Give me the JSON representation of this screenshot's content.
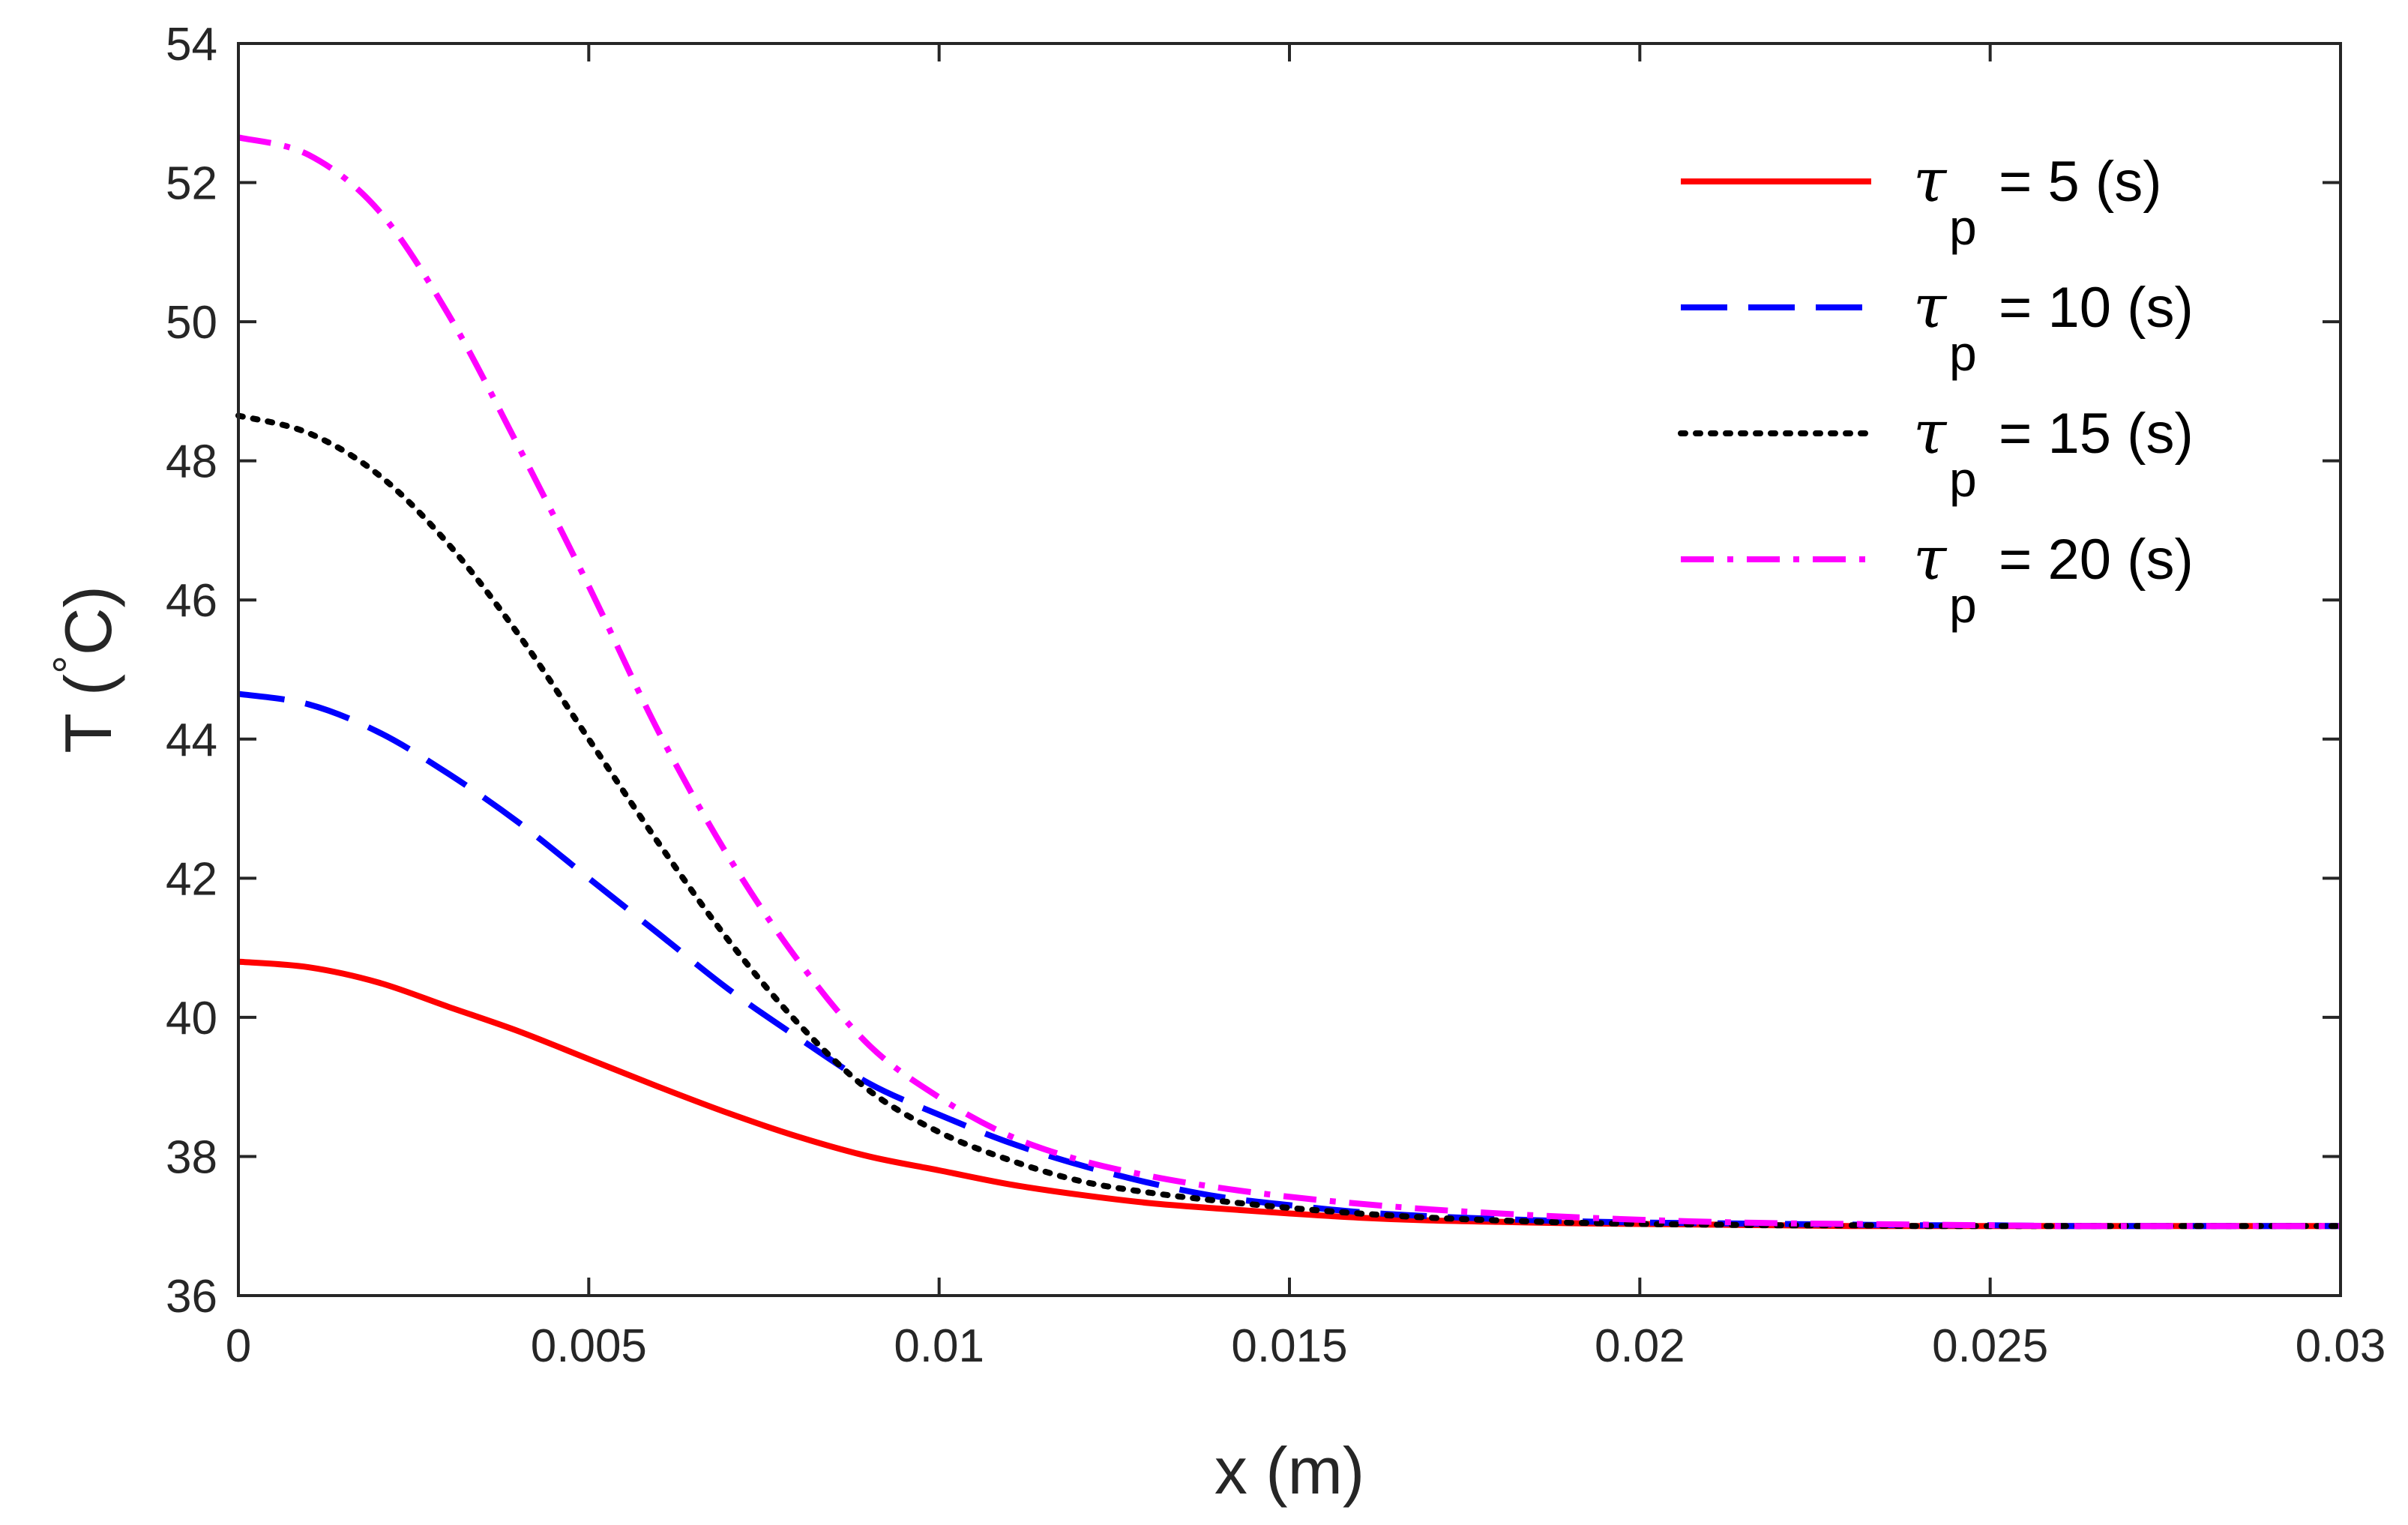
{
  "chart_data": {
    "type": "line",
    "title": "",
    "xlabel": "x (m)",
    "ylabel_prefix": "T (",
    "ylabel_degree": "°",
    "ylabel_suffix": "C)",
    "xlim": [
      0,
      0.03
    ],
    "ylim": [
      36,
      54
    ],
    "xticks": [
      0,
      0.005,
      0.01,
      0.015,
      0.02,
      0.025,
      0.03
    ],
    "xtick_labels": [
      "0",
      "0.005",
      "0.01",
      "0.015",
      "0.02",
      "0.025",
      "0.03"
    ],
    "yticks": [
      36,
      38,
      40,
      42,
      44,
      46,
      48,
      50,
      52,
      54
    ],
    "ytick_labels": [
      "36",
      "38",
      "40",
      "42",
      "44",
      "46",
      "48",
      "50",
      "52",
      "54"
    ],
    "grid": false,
    "legend_position": "top-right",
    "baseline": 37,
    "x": [
      0,
      0.001,
      0.002,
      0.003,
      0.004,
      0.005,
      0.006,
      0.007,
      0.008,
      0.009,
      0.01,
      0.011,
      0.012,
      0.013,
      0.014,
      0.015,
      0.016,
      0.017,
      0.018,
      0.019,
      0.02,
      0.021,
      0.022,
      0.023,
      0.024,
      0.025,
      0.026,
      0.027,
      0.028,
      0.029,
      0.03
    ],
    "series": [
      {
        "name": "5 (s)",
        "tau_symbol": "τ",
        "subscript": "p",
        "equals": "=",
        "color": "#ff0000",
        "style": "solid",
        "values": [
          40.8,
          40.72,
          40.5,
          40.15,
          39.8,
          39.4,
          39.0,
          38.62,
          38.28,
          38.0,
          37.8,
          37.6,
          37.45,
          37.33,
          37.25,
          37.18,
          37.12,
          37.08,
          37.06,
          37.04,
          37.03,
          37.02,
          37.01,
          37.0,
          37.0,
          37.0,
          37.0,
          37.0,
          37.0,
          37.0,
          37.0
        ]
      },
      {
        "name": "10 (s)",
        "tau_symbol": "τ",
        "subscript": "p",
        "equals": "=",
        "color": "#0000ff",
        "style": "dashed",
        "values": [
          44.65,
          44.5,
          44.1,
          43.5,
          42.8,
          42.0,
          41.2,
          40.4,
          39.7,
          39.05,
          38.6,
          38.2,
          37.88,
          37.62,
          37.42,
          37.3,
          37.2,
          37.14,
          37.1,
          37.07,
          37.05,
          37.04,
          37.03,
          37.02,
          37.01,
          37.01,
          37.0,
          37.0,
          37.0,
          37.0,
          37.0
        ]
      },
      {
        "name": "15 (s)",
        "tau_symbol": "τ",
        "subscript": "p",
        "equals": "=",
        "color": "#000000",
        "style": "dotted",
        "values": [
          48.65,
          48.4,
          47.8,
          46.8,
          45.5,
          44.0,
          42.5,
          41.1,
          39.9,
          38.95,
          38.35,
          37.95,
          37.65,
          37.48,
          37.36,
          37.26,
          37.18,
          37.12,
          37.08,
          37.05,
          37.03,
          37.02,
          37.01,
          37.01,
          37.0,
          37.0,
          37.0,
          37.0,
          37.0,
          37.0,
          37.0
        ]
      },
      {
        "name": "20 (s)",
        "tau_symbol": "τ",
        "subscript": "p",
        "equals": "=",
        "color": "#ff00ff",
        "style": "dashdot",
        "values": [
          52.65,
          52.4,
          51.6,
          50.1,
          48.2,
          46.2,
          44.1,
          42.3,
          40.8,
          39.6,
          38.85,
          38.3,
          37.95,
          37.72,
          37.55,
          37.42,
          37.32,
          37.24,
          37.18,
          37.13,
          37.09,
          37.06,
          37.04,
          37.03,
          37.02,
          37.01,
          37.0,
          37.0,
          37.0,
          37.0,
          37.0
        ]
      }
    ]
  }
}
